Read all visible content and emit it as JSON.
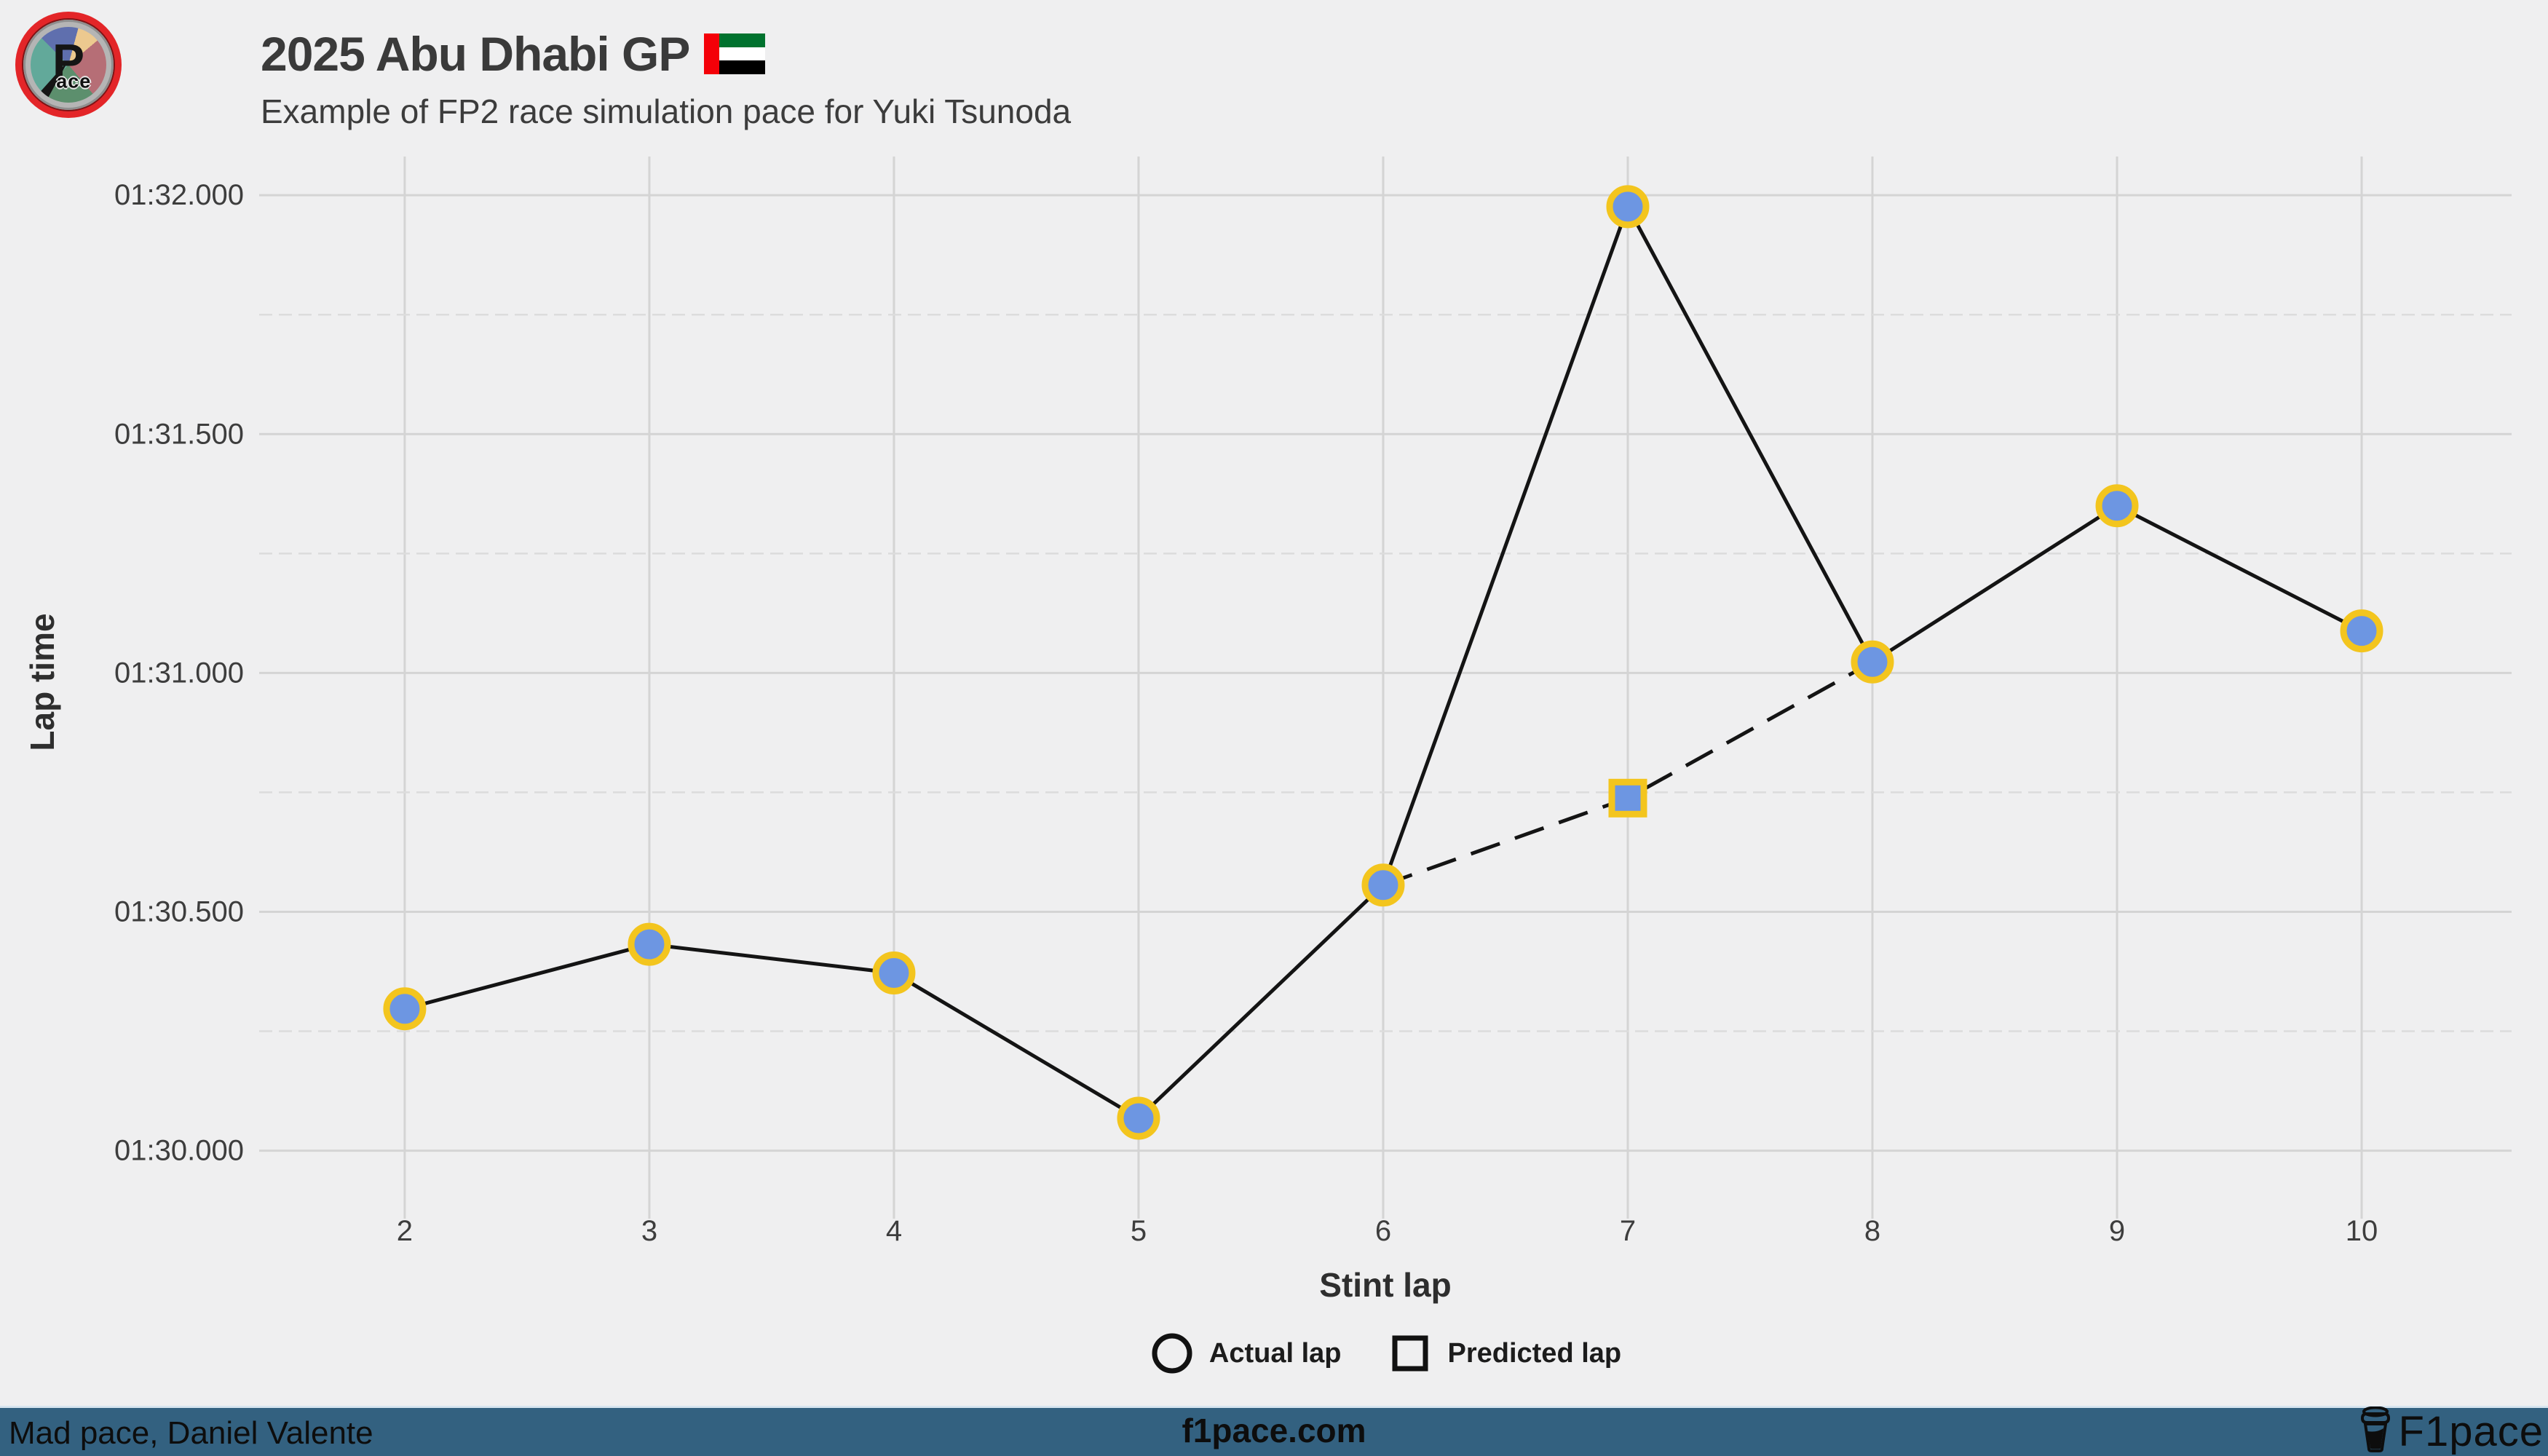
{
  "header": {
    "logo": {
      "p": "P",
      "ace": "ace"
    },
    "title": "2025 Abu Dhabi GP",
    "subtitle": "Example of FP2 race simulation pace for Yuki Tsunoda",
    "flag": "united-arab-emirates"
  },
  "chart_data": {
    "type": "line",
    "title": "2025 Abu Dhabi GP",
    "subtitle": "Example of FP2 race simulation pace for Yuki Tsunoda",
    "xlabel": "Stint lap",
    "ylabel": "Lap time",
    "x_ticks": [
      2,
      3,
      4,
      5,
      6,
      7,
      8,
      9,
      10
    ],
    "y_ticks": [
      {
        "value": 90.0,
        "label": "01:30.000"
      },
      {
        "value": 90.5,
        "label": "01:30.500"
      },
      {
        "value": 91.0,
        "label": "01:31.000"
      },
      {
        "value": 91.5,
        "label": "01:31.500"
      },
      {
        "value": 92.0,
        "label": "01:32.000"
      }
    ],
    "y_minor_ticks": [
      90.25,
      90.75,
      91.25,
      91.75
    ],
    "xlim": [
      1.405,
      10.613
    ],
    "ylim": [
      89.879,
      92.081
    ],
    "grid": true,
    "legend_position": "bottom",
    "series": [
      {
        "name": "Actual lap",
        "marker": "circle",
        "line_style": "solid",
        "points": [
          {
            "x": 2,
            "y": 90.297
          },
          {
            "x": 3,
            "y": 90.432
          },
          {
            "x": 4,
            "y": 90.372
          },
          {
            "x": 5,
            "y": 90.068
          },
          {
            "x": 6,
            "y": 90.556
          },
          {
            "x": 7,
            "y": 91.976
          },
          {
            "x": 8,
            "y": 91.023
          },
          {
            "x": 9,
            "y": 91.35
          },
          {
            "x": 10,
            "y": 91.088
          }
        ]
      },
      {
        "name": "Predicted lap",
        "marker": "square",
        "line_style": "dashed",
        "marker_only_at_x": [
          7
        ],
        "points": [
          {
            "x": 6,
            "y": 90.556
          },
          {
            "x": 7,
            "y": 90.738
          },
          {
            "x": 8,
            "y": 91.023
          }
        ]
      }
    ]
  },
  "colors": {
    "background": "#efeff0",
    "grid_major": "#d4d4d4",
    "grid_minor": "#dcdcdc",
    "data_line": "#141414",
    "marker_fill": "#6d96e2",
    "marker_edge": "#f3c51e",
    "footer_bg": "#336180",
    "text_dark": "#3d3d3d"
  },
  "footer": {
    "left": "Mad pace, Daniel Valente",
    "center": "f1pace.com",
    "right": "F1pace"
  }
}
